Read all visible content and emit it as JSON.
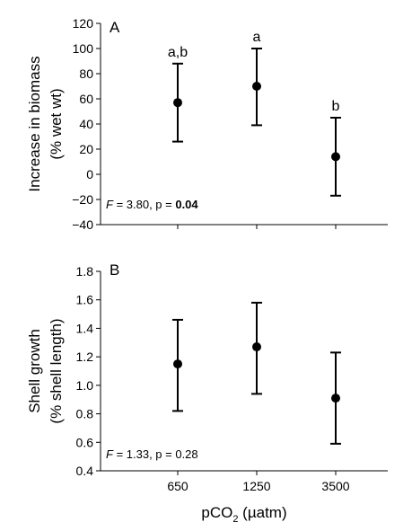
{
  "chart_data": [
    {
      "type": "scatter",
      "panel_letter": "A",
      "ylabel_line1": "Increase in biomass",
      "ylabel_line2": "(% wet wt)",
      "ylim": [
        -40,
        120
      ],
      "yticks": [
        -40,
        -20,
        0,
        20,
        40,
        60,
        80,
        100,
        120
      ],
      "ytick_labels": [
        "−40",
        "−20",
        "0",
        "20",
        "40",
        "60",
        "80",
        "100",
        "120"
      ],
      "categories": [
        "650",
        "1250",
        "3500"
      ],
      "series": [
        {
          "values": [
            57,
            70,
            14
          ],
          "error_low": [
            26,
            39,
            -17
          ],
          "error_high": [
            88,
            100,
            45
          ],
          "letters": [
            "a,b",
            "a",
            "b"
          ]
        }
      ],
      "stat": {
        "f_symbol": "F",
        "f_text": " = 3.80, p = ",
        "p_value": "0.04",
        "p_bold": true
      },
      "grid": false
    },
    {
      "type": "scatter",
      "panel_letter": "B",
      "ylabel_line1": "Shell growth",
      "ylabel_line2": "(% shell length)",
      "ylim": [
        0.4,
        1.8
      ],
      "yticks": [
        0.4,
        0.6,
        0.8,
        1.0,
        1.2,
        1.4,
        1.6,
        1.8
      ],
      "ytick_labels": [
        "0.4",
        "0.6",
        "0.8",
        "1.0",
        "1.2",
        "1.4",
        "1.6",
        "1.8"
      ],
      "categories": [
        "650",
        "1250",
        "3500"
      ],
      "series": [
        {
          "values": [
            1.15,
            1.27,
            0.91
          ],
          "error_low": [
            0.82,
            0.94,
            0.59
          ],
          "error_high": [
            1.46,
            1.58,
            1.23
          ]
        }
      ],
      "stat": {
        "f_symbol": "F",
        "f_text": " = 1.33, p = ",
        "p_value": "0.28",
        "p_bold": false
      },
      "grid": false
    }
  ],
  "x_axis": {
    "label_main": "pCO",
    "label_sub": "2",
    "label_unit": " (µatm)",
    "tick_labels": [
      "650",
      "1250",
      "3500"
    ]
  },
  "colors": {
    "ink": "#000000",
    "background": "#ffffff"
  }
}
